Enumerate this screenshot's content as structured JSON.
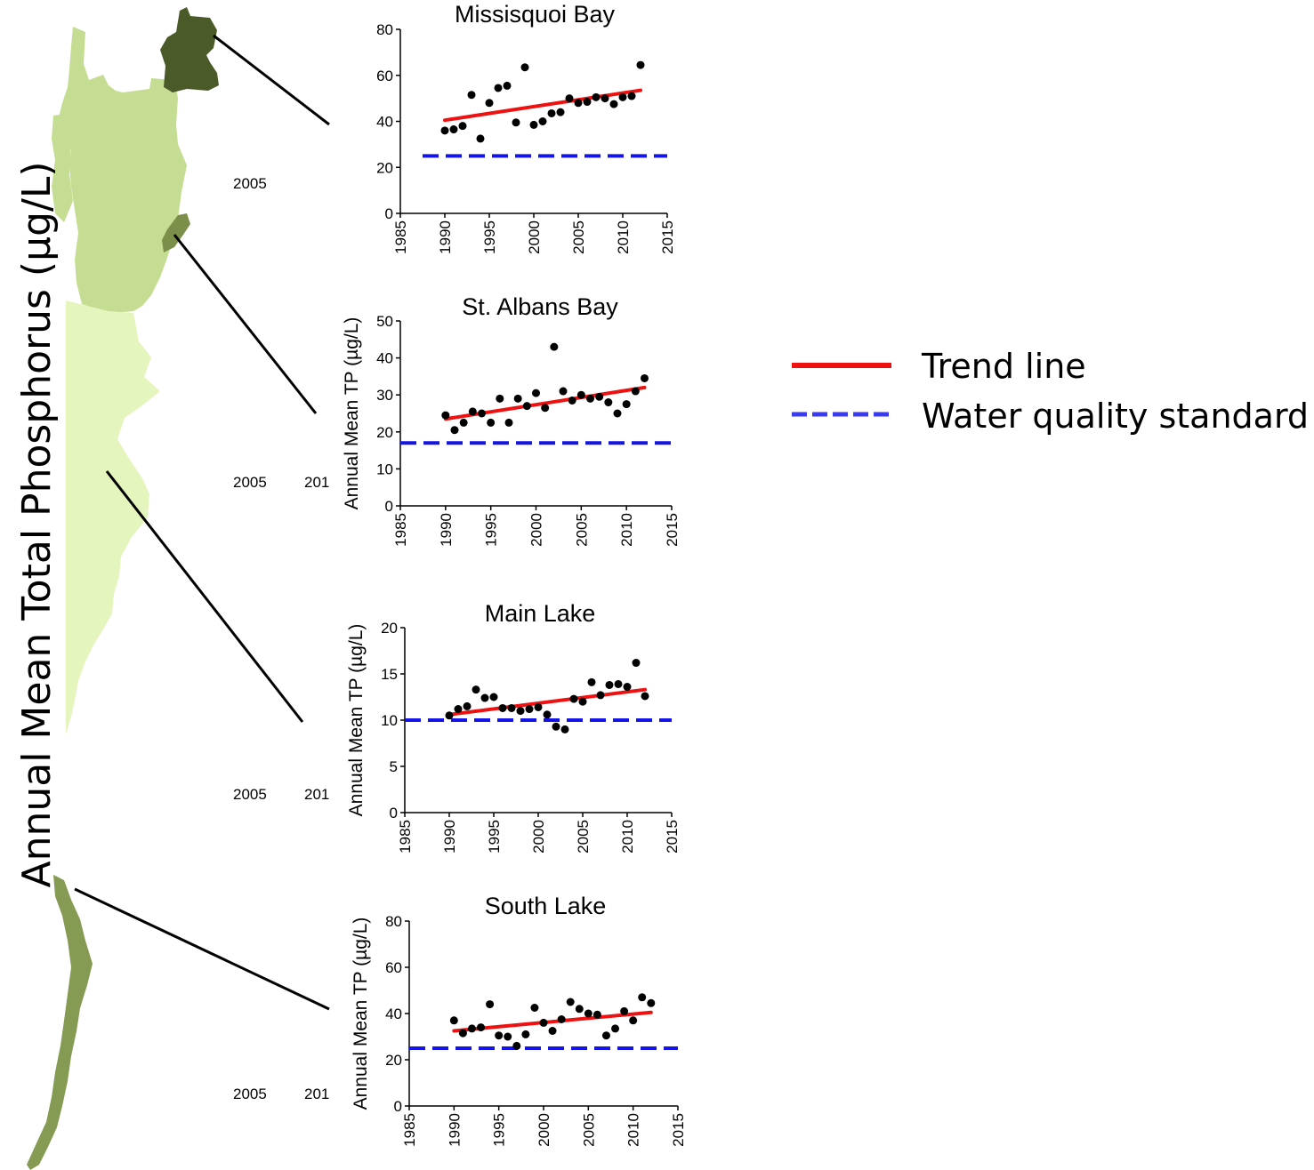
{
  "figure": {
    "side_ylabel": "Annual Mean Total Phosphorus (µg/L)",
    "stray_labels": {
      "a": "2005",
      "b": "2005",
      "c": "201",
      "d": "2005",
      "e": "201",
      "f": "2005",
      "g": "201"
    }
  },
  "legend": {
    "trend_label": "Trend line",
    "standard_label": "Water quality standard",
    "trend_color": "#ee1111",
    "standard_color": "#3a3af0"
  },
  "colors": {
    "trend": "#ee1111",
    "standard": "#1414e6",
    "points": "#000000",
    "map_missisquoi": "#4a5a28",
    "map_northeast": "#c5dd92",
    "map_stalbans": "#7c8f4a",
    "map_main": "#e5f5be",
    "map_south": "#859a52"
  },
  "chart_data": [
    {
      "type": "scatter",
      "title": "Missisquoi Bay",
      "ylabel": "",
      "xlabel": "",
      "xlim": [
        1985,
        2015
      ],
      "ylim": [
        0,
        80
      ],
      "xticks": [
        1985,
        1990,
        1995,
        2000,
        2005,
        2010,
        2015
      ],
      "yticks": [
        0,
        20,
        40,
        60,
        80
      ],
      "x": [
        1990,
        1991,
        1992,
        1993,
        1994,
        1995,
        1996,
        1997,
        1998,
        1999,
        2000,
        2001,
        2002,
        2003,
        2004,
        2005,
        2006,
        2007,
        2008,
        2009,
        2010,
        2011,
        2012
      ],
      "y": [
        36,
        36.5,
        38,
        51.5,
        32.5,
        48,
        54.5,
        55.5,
        39.5,
        63.5,
        38.5,
        40,
        43.5,
        44,
        50,
        48,
        48.5,
        50.5,
        50,
        47.5,
        50.5,
        51,
        64.5
      ],
      "trend": [
        [
          1990,
          40.5
        ],
        [
          2012,
          53.5
        ]
      ],
      "standard": 25,
      "grid": false
    },
    {
      "type": "scatter",
      "title": "St. Albans Bay",
      "ylabel": "Annual Mean TP (µg/L)",
      "xlabel": "",
      "xlim": [
        1985,
        2015
      ],
      "ylim": [
        0,
        50
      ],
      "xticks": [
        1985,
        1990,
        1995,
        2000,
        2005,
        2010,
        2015
      ],
      "yticks": [
        0,
        10,
        20,
        30,
        40,
        50
      ],
      "x": [
        1990,
        1991,
        1992,
        1993,
        1994,
        1995,
        1996,
        1997,
        1998,
        1999,
        2000,
        2001,
        2002,
        2003,
        2004,
        2005,
        2006,
        2007,
        2008,
        2009,
        2010,
        2011,
        2012
      ],
      "y": [
        24.5,
        20.5,
        22.5,
        25.5,
        25,
        22.5,
        29,
        22.5,
        29,
        27,
        30.5,
        26.5,
        43,
        31,
        28.5,
        30,
        29,
        29.5,
        28,
        25,
        27.5,
        31,
        34.5
      ],
      "trend": [
        [
          1990,
          23.5
        ],
        [
          2012,
          32
        ]
      ],
      "standard": 17,
      "grid": false
    },
    {
      "type": "scatter",
      "title": "Main Lake",
      "ylabel": "Annual Mean TP (µg/L)",
      "xlabel": "",
      "xlim": [
        1985,
        2015
      ],
      "ylim": [
        0,
        20
      ],
      "xticks": [
        1985,
        1990,
        1995,
        2000,
        2005,
        2010,
        2015
      ],
      "yticks": [
        0,
        5,
        10,
        15,
        20
      ],
      "x": [
        1990,
        1991,
        1992,
        1993,
        1994,
        1995,
        1996,
        1997,
        1998,
        1999,
        2000,
        2001,
        2002,
        2003,
        2004,
        2005,
        2006,
        2007,
        2008,
        2009,
        2010,
        2011,
        2012
      ],
      "y": [
        10.5,
        11.2,
        11.5,
        13.3,
        12.4,
        12.5,
        11.3,
        11.3,
        11,
        11.2,
        11.4,
        10.6,
        9.3,
        9,
        12.3,
        12,
        14.1,
        12.7,
        13.8,
        13.9,
        13.6,
        16.2,
        12.6
      ],
      "trend": [
        [
          1990,
          10.6
        ],
        [
          2012,
          13.3
        ]
      ],
      "standard": 10,
      "grid": false
    },
    {
      "type": "scatter",
      "title": "South Lake",
      "ylabel": "Annual Mean TP (µg/L)",
      "xlabel": "",
      "xlim": [
        1985,
        2015
      ],
      "ylim": [
        0,
        80
      ],
      "xticks": [
        1985,
        1990,
        1995,
        2000,
        2005,
        2010,
        2015
      ],
      "yticks": [
        0,
        20,
        40,
        60,
        80
      ],
      "x": [
        1990,
        1991,
        1992,
        1993,
        1994,
        1995,
        1996,
        1997,
        1998,
        1999,
        2000,
        2001,
        2002,
        2003,
        2004,
        2005,
        2006,
        2007,
        2008,
        2009,
        2010,
        2011,
        2012
      ],
      "y": [
        37,
        31.5,
        33.5,
        34,
        44,
        30.5,
        30,
        26,
        31,
        42.5,
        36,
        32.5,
        37.5,
        45,
        42,
        40,
        39.5,
        30.5,
        33.5,
        41,
        37,
        47,
        44.5
      ],
      "trend": [
        [
          1990,
          32.5
        ],
        [
          2012,
          40.5
        ]
      ],
      "standard": 25,
      "grid": false
    }
  ]
}
